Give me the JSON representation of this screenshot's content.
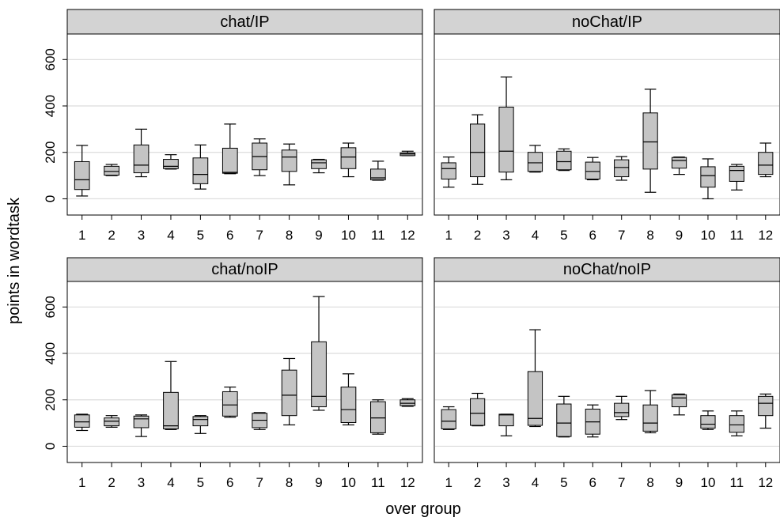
{
  "chart_data": {
    "type": "box",
    "xlabel": "over group",
    "ylabel": "points in wordtask",
    "categories": [
      "1",
      "2",
      "3",
      "4",
      "5",
      "6",
      "7",
      "8",
      "9",
      "10",
      "11",
      "12"
    ],
    "yticks": [
      0,
      200,
      400,
      600
    ],
    "ylim": [
      -70,
      710
    ],
    "grid": true,
    "panels": [
      {
        "name": "chat/IP",
        "boxes": [
          {
            "min": 12,
            "q1": 40,
            "median": 82,
            "q3": 160,
            "max": 230
          },
          {
            "min": 100,
            "q1": 102,
            "median": 118,
            "q3": 140,
            "max": 148
          },
          {
            "min": 95,
            "q1": 112,
            "median": 145,
            "q3": 232,
            "max": 300
          },
          {
            "min": 128,
            "q1": 130,
            "median": 140,
            "q3": 170,
            "max": 190
          },
          {
            "min": 42,
            "q1": 65,
            "median": 105,
            "q3": 176,
            "max": 232
          },
          {
            "min": 108,
            "q1": 110,
            "median": 114,
            "q3": 218,
            "max": 322
          },
          {
            "min": 100,
            "q1": 125,
            "median": 182,
            "q3": 240,
            "max": 258
          },
          {
            "min": 60,
            "q1": 118,
            "median": 180,
            "q3": 210,
            "max": 236
          },
          {
            "min": 112,
            "q1": 130,
            "median": 155,
            "q3": 168,
            "max": 170
          },
          {
            "min": 95,
            "q1": 130,
            "median": 180,
            "q3": 220,
            "max": 240
          },
          {
            "min": 80,
            "q1": 82,
            "median": 90,
            "q3": 128,
            "max": 162
          },
          {
            "min": 186,
            "q1": 186,
            "median": 193,
            "q3": 198,
            "max": 205
          }
        ]
      },
      {
        "name": "noChat/IP",
        "boxes": [
          {
            "min": 50,
            "q1": 85,
            "median": 130,
            "q3": 155,
            "max": 180
          },
          {
            "min": 62,
            "q1": 95,
            "median": 200,
            "q3": 322,
            "max": 362
          },
          {
            "min": 82,
            "q1": 115,
            "median": 205,
            "q3": 395,
            "max": 525
          },
          {
            "min": 115,
            "q1": 118,
            "median": 155,
            "q3": 200,
            "max": 230
          },
          {
            "min": 122,
            "q1": 125,
            "median": 160,
            "q3": 205,
            "max": 215
          },
          {
            "min": 82,
            "q1": 85,
            "median": 118,
            "q3": 158,
            "max": 178
          },
          {
            "min": 80,
            "q1": 95,
            "median": 135,
            "q3": 168,
            "max": 182
          },
          {
            "min": 28,
            "q1": 128,
            "median": 245,
            "q3": 370,
            "max": 472
          },
          {
            "min": 105,
            "q1": 132,
            "median": 165,
            "q3": 178,
            "max": 180
          },
          {
            "min": 0,
            "q1": 50,
            "median": 100,
            "q3": 138,
            "max": 172
          },
          {
            "min": 38,
            "q1": 75,
            "median": 122,
            "q3": 140,
            "max": 148
          },
          {
            "min": 95,
            "q1": 105,
            "median": 145,
            "q3": 200,
            "max": 240
          }
        ]
      },
      {
        "name": "chat/noIP",
        "boxes": [
          {
            "min": 68,
            "q1": 82,
            "median": 105,
            "q3": 135,
            "max": 138
          },
          {
            "min": 82,
            "q1": 88,
            "median": 108,
            "q3": 122,
            "max": 132
          },
          {
            "min": 42,
            "q1": 80,
            "median": 118,
            "q3": 130,
            "max": 135
          },
          {
            "min": 72,
            "q1": 75,
            "median": 88,
            "q3": 232,
            "max": 365
          },
          {
            "min": 55,
            "q1": 88,
            "median": 115,
            "q3": 128,
            "max": 132
          },
          {
            "min": 125,
            "q1": 130,
            "median": 178,
            "q3": 235,
            "max": 255
          },
          {
            "min": 72,
            "q1": 80,
            "median": 112,
            "q3": 142,
            "max": 145
          },
          {
            "min": 92,
            "q1": 132,
            "median": 220,
            "q3": 328,
            "max": 378
          },
          {
            "min": 155,
            "q1": 170,
            "median": 215,
            "q3": 450,
            "max": 645
          },
          {
            "min": 92,
            "q1": 102,
            "median": 158,
            "q3": 255,
            "max": 312
          },
          {
            "min": 52,
            "q1": 58,
            "median": 122,
            "q3": 192,
            "max": 200
          },
          {
            "min": 172,
            "q1": 175,
            "median": 185,
            "q3": 200,
            "max": 205
          }
        ]
      },
      {
        "name": "noChat/noIP",
        "boxes": [
          {
            "min": 72,
            "q1": 75,
            "median": 108,
            "q3": 158,
            "max": 170
          },
          {
            "min": 88,
            "q1": 90,
            "median": 142,
            "q3": 205,
            "max": 228
          },
          {
            "min": 45,
            "q1": 88,
            "median": 135,
            "q3": 138,
            "max": 138
          },
          {
            "min": 85,
            "q1": 90,
            "median": 120,
            "q3": 322,
            "max": 502
          },
          {
            "min": 40,
            "q1": 42,
            "median": 100,
            "q3": 182,
            "max": 215
          },
          {
            "min": 40,
            "q1": 52,
            "median": 105,
            "q3": 160,
            "max": 178
          },
          {
            "min": 115,
            "q1": 128,
            "median": 145,
            "q3": 185,
            "max": 215
          },
          {
            "min": 58,
            "q1": 65,
            "median": 100,
            "q3": 178,
            "max": 240
          },
          {
            "min": 135,
            "q1": 170,
            "median": 208,
            "q3": 222,
            "max": 225
          },
          {
            "min": 72,
            "q1": 78,
            "median": 95,
            "q3": 132,
            "max": 152
          },
          {
            "min": 45,
            "q1": 60,
            "median": 92,
            "q3": 132,
            "max": 152
          },
          {
            "min": 78,
            "q1": 132,
            "median": 185,
            "q3": 215,
            "max": 225
          }
        ]
      }
    ]
  },
  "colors": {
    "box_fill": "#c4c4c4",
    "strip_fill": "#d3d3d3",
    "grid": "#dcdcdc",
    "ink": "#000000"
  }
}
